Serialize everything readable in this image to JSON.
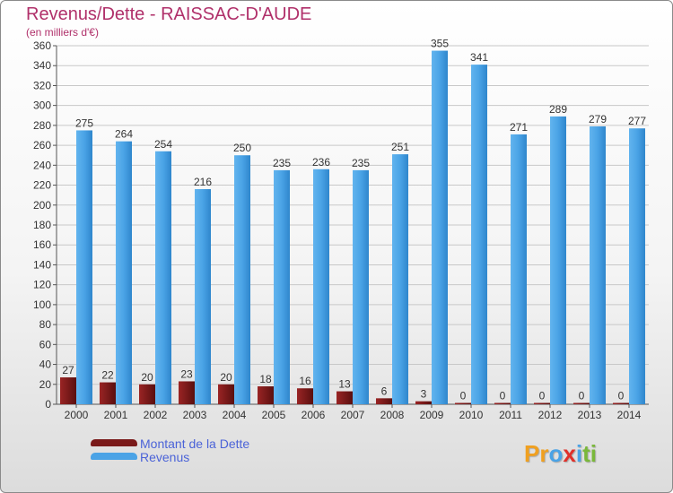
{
  "title": "Revenus/Dette - RAISSAC-D'AUDE",
  "subtitle": "(en milliers d'€)",
  "legend": [
    {
      "label": "Montant de la Dette",
      "color": "#7a1a1a"
    },
    {
      "label": "Revenus",
      "color": "#4aa3e6"
    }
  ],
  "logo": {
    "parts": [
      "Pr",
      "o",
      "x",
      "i",
      "ti"
    ],
    "colors": [
      "#f0a020",
      "#4aa3e6",
      "#e0302a",
      "#4aa3e6",
      "#7ab83a"
    ]
  },
  "chart_data": {
    "type": "bar",
    "categories": [
      "2000",
      "2001",
      "2002",
      "2003",
      "2004",
      "2005",
      "2006",
      "2007",
      "2008",
      "2009",
      "2010",
      "2011",
      "2012",
      "2013",
      "2014"
    ],
    "series": [
      {
        "name": "Montant de la Dette",
        "color": "#7a1a1a",
        "values": [
          27,
          22,
          20,
          23,
          20,
          18,
          16,
          13,
          6,
          3,
          0,
          0,
          0,
          0,
          0
        ]
      },
      {
        "name": "Revenus",
        "color": "#4aa3e6",
        "values": [
          275,
          264,
          254,
          216,
          250,
          235,
          236,
          235,
          251,
          355,
          341,
          271,
          289,
          279,
          277
        ]
      }
    ],
    "yticks": [
      "0",
      "20",
      "40",
      "60",
      "80",
      "100",
      "120",
      "140",
      "160",
      "180",
      "200",
      "220",
      "240",
      "260",
      "280",
      "300",
      "320",
      "340",
      "360"
    ],
    "ylim": [
      0,
      360
    ],
    "grid": true
  }
}
